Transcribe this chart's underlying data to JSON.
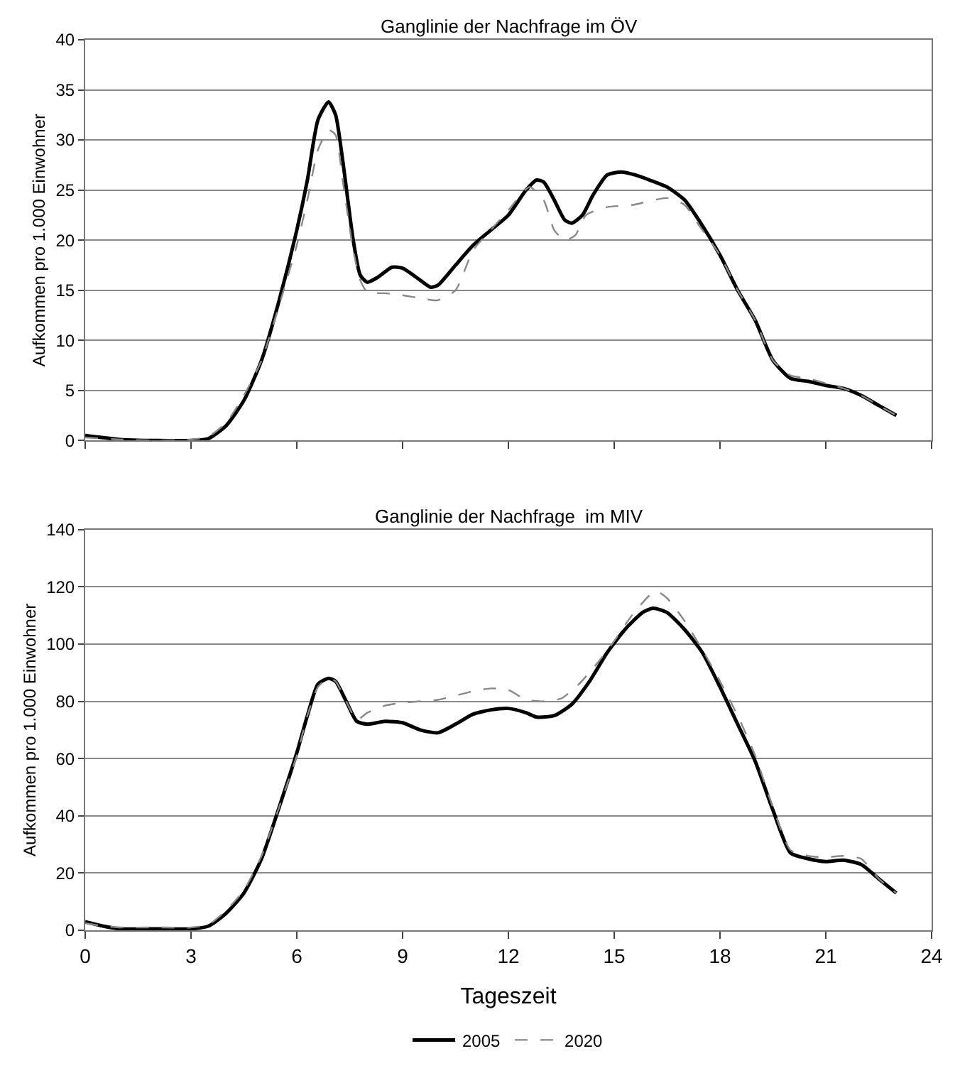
{
  "chart_data": [
    {
      "type": "line",
      "title": "Ganglinie der Nachfrage im ÖV",
      "ylabel": "Aufkommen pro 1.000 Einwohner",
      "xlim": [
        0,
        24
      ],
      "xticks": [
        0,
        3,
        6,
        9,
        12,
        15,
        18,
        21,
        24
      ],
      "ylim": [
        0,
        40
      ],
      "yticks": [
        0,
        5,
        10,
        15,
        20,
        25,
        30,
        35,
        40
      ],
      "grid": "y",
      "tick_labels": "y",
      "legend": "bottom",
      "marker": "none",
      "series": [
        {
          "name": "2005",
          "color": "#000000",
          "line_style": "solid",
          "x": [
            0,
            1,
            2,
            3,
            3.5,
            4,
            4.5,
            5,
            5.5,
            6,
            6.3,
            6.6,
            6.9,
            7.1,
            7.3,
            7.6,
            7.8,
            8,
            8.3,
            8.7,
            9,
            9.5,
            9.8,
            10,
            10.5,
            11,
            11.5,
            12,
            12.5,
            12.8,
            13,
            13.3,
            13.6,
            13.8,
            14.1,
            14.4,
            14.8,
            15.2,
            15.6,
            16,
            16.5,
            17,
            17.4,
            18,
            18.5,
            19,
            19.5,
            20,
            20.5,
            21,
            21.5,
            22,
            22.5,
            23
          ],
          "values": [
            0.5,
            0.1,
            0,
            0,
            0.2,
            1.5,
            4,
            8,
            14,
            21,
            26,
            32,
            33.8,
            32.5,
            28,
            20,
            16.5,
            15.8,
            16.3,
            17.3,
            17.2,
            16,
            15.3,
            15.5,
            17.5,
            19.5,
            21,
            22.5,
            25,
            26,
            25.8,
            24,
            22,
            21.7,
            22.5,
            24.5,
            26.5,
            26.8,
            26.5,
            26,
            25.3,
            24,
            22,
            18.5,
            15,
            12,
            8,
            6.2,
            5.9,
            5.5,
            5.2,
            4.5,
            3.5,
            2.5
          ]
        },
        {
          "name": "2020",
          "color": "#888888",
          "line_style": "dashed",
          "x": [
            0,
            1,
            2,
            3,
            3.5,
            4,
            4.5,
            5,
            5.5,
            6,
            6.3,
            6.6,
            6.9,
            7.1,
            7.3,
            7.6,
            7.8,
            8,
            8.5,
            9,
            9.5,
            10,
            10.5,
            11,
            11.5,
            12,
            12.6,
            13,
            13.3,
            13.6,
            13.9,
            14.2,
            14.8,
            15.5,
            16.5,
            17,
            17.4,
            18,
            18.5,
            19,
            19.5,
            20,
            20.5,
            21,
            21.5,
            22,
            22.5,
            23
          ],
          "values": [
            0.3,
            0.1,
            0,
            0.1,
            0.4,
            1.8,
            4.5,
            8,
            13.5,
            19.5,
            24,
            29,
            31,
            30.5,
            26,
            19,
            16,
            14.8,
            14.7,
            14.5,
            14.2,
            14,
            15,
            19,
            21,
            23,
            25.3,
            24,
            21,
            20,
            20.5,
            22.5,
            23.3,
            23.5,
            24.2,
            23.5,
            21.5,
            18.5,
            15,
            12,
            8,
            6.5,
            6.2,
            5.7,
            5.2,
            4.5,
            3.5,
            2.5
          ]
        }
      ]
    },
    {
      "type": "line",
      "title": "Ganglinie der Nachfrage  im MIV",
      "ylabel": "Aufkommen pro 1.000 Einwohner",
      "xlabel": "Tageszeit",
      "xlim": [
        0,
        24
      ],
      "xticks": [
        0,
        3,
        6,
        9,
        12,
        15,
        18,
        21,
        24
      ],
      "ylim": [
        0,
        140
      ],
      "yticks": [
        0,
        20,
        40,
        60,
        80,
        100,
        120,
        140
      ],
      "grid": "y",
      "legend": "bottom",
      "marker": "none",
      "series": [
        {
          "name": "2005",
          "color": "#000000",
          "line_style": "solid",
          "x": [
            0,
            0.5,
            1,
            2,
            3,
            3.5,
            4,
            4.5,
            5,
            5.5,
            6,
            6.3,
            6.6,
            6.9,
            7.1,
            7.4,
            7.7,
            8,
            8.5,
            9,
            9.5,
            10,
            10.5,
            11,
            11.5,
            12,
            12.5,
            12.8,
            13.3,
            13.8,
            14.3,
            14.8,
            15.3,
            15.8,
            16.1,
            16.5,
            17,
            17.5,
            18,
            18.5,
            19,
            19.5,
            20,
            20.5,
            21,
            21.5,
            22,
            22.5,
            23
          ],
          "values": [
            3,
            1.5,
            0.5,
            0.5,
            0.5,
            1.5,
            6,
            13,
            25,
            43,
            62,
            75,
            86,
            88,
            87,
            80,
            73,
            72,
            73,
            72.5,
            70,
            69,
            72,
            75.5,
            77,
            77.5,
            76,
            74.5,
            75,
            79,
            87,
            97,
            105,
            111,
            112.5,
            111,
            105,
            97,
            85,
            72,
            59,
            42,
            27,
            25,
            24,
            24.5,
            23,
            18,
            13
          ]
        },
        {
          "name": "2020",
          "color": "#888888",
          "line_style": "dashed",
          "x": [
            0,
            0.5,
            1,
            2,
            3,
            3.5,
            4,
            4.5,
            5,
            5.5,
            6,
            6.3,
            6.6,
            6.9,
            7.1,
            7.4,
            7.7,
            8,
            8.5,
            9,
            9.5,
            10,
            10.5,
            11,
            11.5,
            12,
            12.5,
            13,
            13.5,
            14,
            14.5,
            15,
            15.5,
            16,
            16.2,
            16.5,
            17,
            17.5,
            18,
            18.5,
            19,
            19.5,
            20,
            20.5,
            21,
            21.5,
            22,
            22.5,
            23
          ],
          "values": [
            2.5,
            1.5,
            1,
            1,
            1,
            2,
            7,
            14,
            26,
            43,
            61,
            75,
            85,
            88,
            87,
            80,
            73.5,
            76,
            78.5,
            79.5,
            80,
            80.5,
            82,
            83.5,
            84.5,
            84,
            80.5,
            80,
            81,
            86,
            93,
            101,
            110,
            117,
            118.5,
            116,
            108,
            98,
            87,
            75,
            61,
            43,
            28,
            26,
            25.5,
            26,
            25,
            18,
            13
          ]
        }
      ]
    }
  ]
}
